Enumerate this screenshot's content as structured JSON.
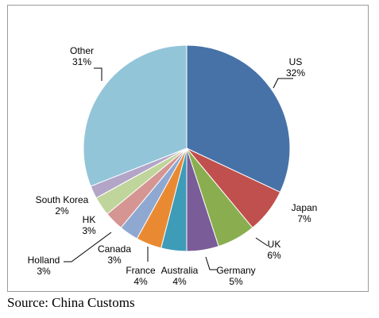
{
  "chart_data": {
    "type": "pie",
    "slices": [
      {
        "label": "US",
        "pct_label": "32%",
        "value": 32,
        "color": "#4672A8"
      },
      {
        "label": "Japan",
        "pct_label": "7%",
        "value": 7,
        "color": "#C0504D"
      },
      {
        "label": "UK",
        "pct_label": "6%",
        "value": 6,
        "color": "#8AAE4F"
      },
      {
        "label": "Germany",
        "pct_label": "5%",
        "value": 5,
        "color": "#7A5C99"
      },
      {
        "label": "Australia",
        "pct_label": "4%",
        "value": 4,
        "color": "#3E9CB8"
      },
      {
        "label": "France",
        "pct_label": "4%",
        "value": 4,
        "color": "#E98A33"
      },
      {
        "label": "Canada",
        "pct_label": "3%",
        "value": 3,
        "color": "#8FA8D2"
      },
      {
        "label": "Holland",
        "pct_label": "3%",
        "value": 3,
        "color": "#D49593"
      },
      {
        "label": "HK",
        "pct_label": "3%",
        "value": 3,
        "color": "#C0D59B"
      },
      {
        "label": "South Korea",
        "pct_label": "2%",
        "value": 2,
        "color": "#B3A5C7"
      },
      {
        "label": "Other",
        "pct_label": "31%",
        "value": 31,
        "color": "#93C5D9"
      }
    ],
    "legend": "none"
  },
  "source": "Source: China Customs"
}
